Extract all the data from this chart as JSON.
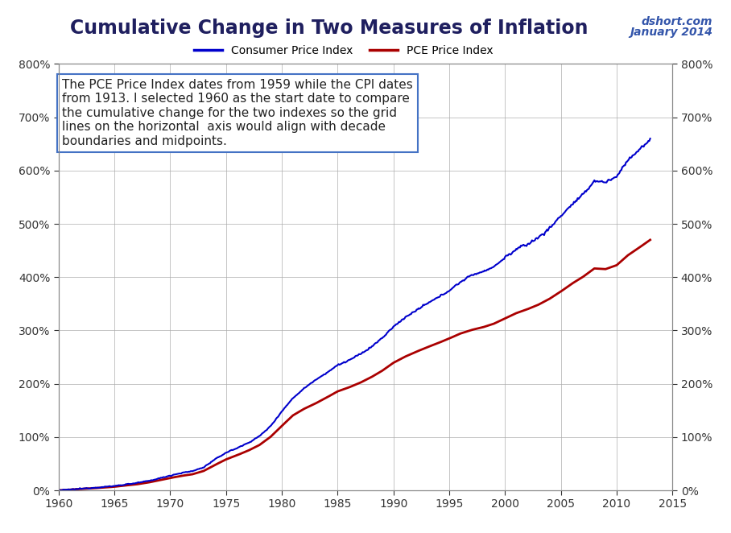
{
  "title": "Cumulative Change in Two Measures of Inflation",
  "watermark_line1": "dshort.com",
  "watermark_line2": "January 2014",
  "annotation": "The PCE Price Index dates from 1959 while the CPI dates\nfrom 1913. I selected 1960 as the start date to compare\nthe cumulative change for the two indexes so the grid\nlines on the horizontal  axis would align with decade\nboundaries and midpoints.",
  "cpi_label": "Consumer Price Index",
  "pce_label": "PCE Price Index",
  "cpi_color": "#0000CC",
  "pce_color": "#AA0000",
  "background_color": "#FFFFFF",
  "grid_color": "#AAAAAA",
  "xlim": [
    1960,
    2015
  ],
  "ylim": [
    0.0,
    8.0
  ],
  "xticks": [
    1960,
    1965,
    1970,
    1975,
    1980,
    1985,
    1990,
    1995,
    2000,
    2005,
    2010,
    2015
  ],
  "yticks": [
    0,
    1,
    2,
    3,
    4,
    5,
    6,
    7,
    8
  ],
  "title_fontsize": 17,
  "title_color": "#1F1F5F",
  "legend_fontsize": 10,
  "annotation_fontsize": 11,
  "watermark_fontsize": 10,
  "watermark_color": "#3355AA"
}
